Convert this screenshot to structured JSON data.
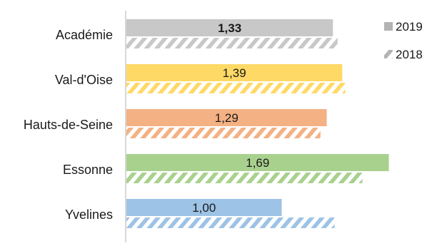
{
  "chart_data": {
    "type": "bar",
    "orientation": "horizontal",
    "categories": [
      "Académie",
      "Val-d'Oise",
      "Hauts-de-Seine",
      "Essonne",
      "Yvelines"
    ],
    "series": [
      {
        "name": "2019",
        "values": [
          1.33,
          1.39,
          1.29,
          1.69,
          1.0
        ],
        "data_labels": [
          "1,33",
          "1,39",
          "1,29",
          "1,69",
          "1,00"
        ],
        "colors": [
          "#c8c8c8",
          "#ffd966",
          "#f4b183",
          "#a9d18e",
          "#9dc3e6"
        ],
        "pattern": "solid"
      },
      {
        "name": "2018",
        "values": [
          1.36,
          1.41,
          1.25,
          1.52,
          1.34
        ],
        "colors": [
          "#c8c8c8",
          "#ffd966",
          "#f4b183",
          "#a9d18e",
          "#9dc3e6"
        ],
        "pattern": "hatched"
      }
    ],
    "bold_labels": [
      "1,33"
    ],
    "legend": {
      "position": "top-right"
    },
    "grid": false,
    "xlim": [
      0,
      1.75
    ]
  }
}
